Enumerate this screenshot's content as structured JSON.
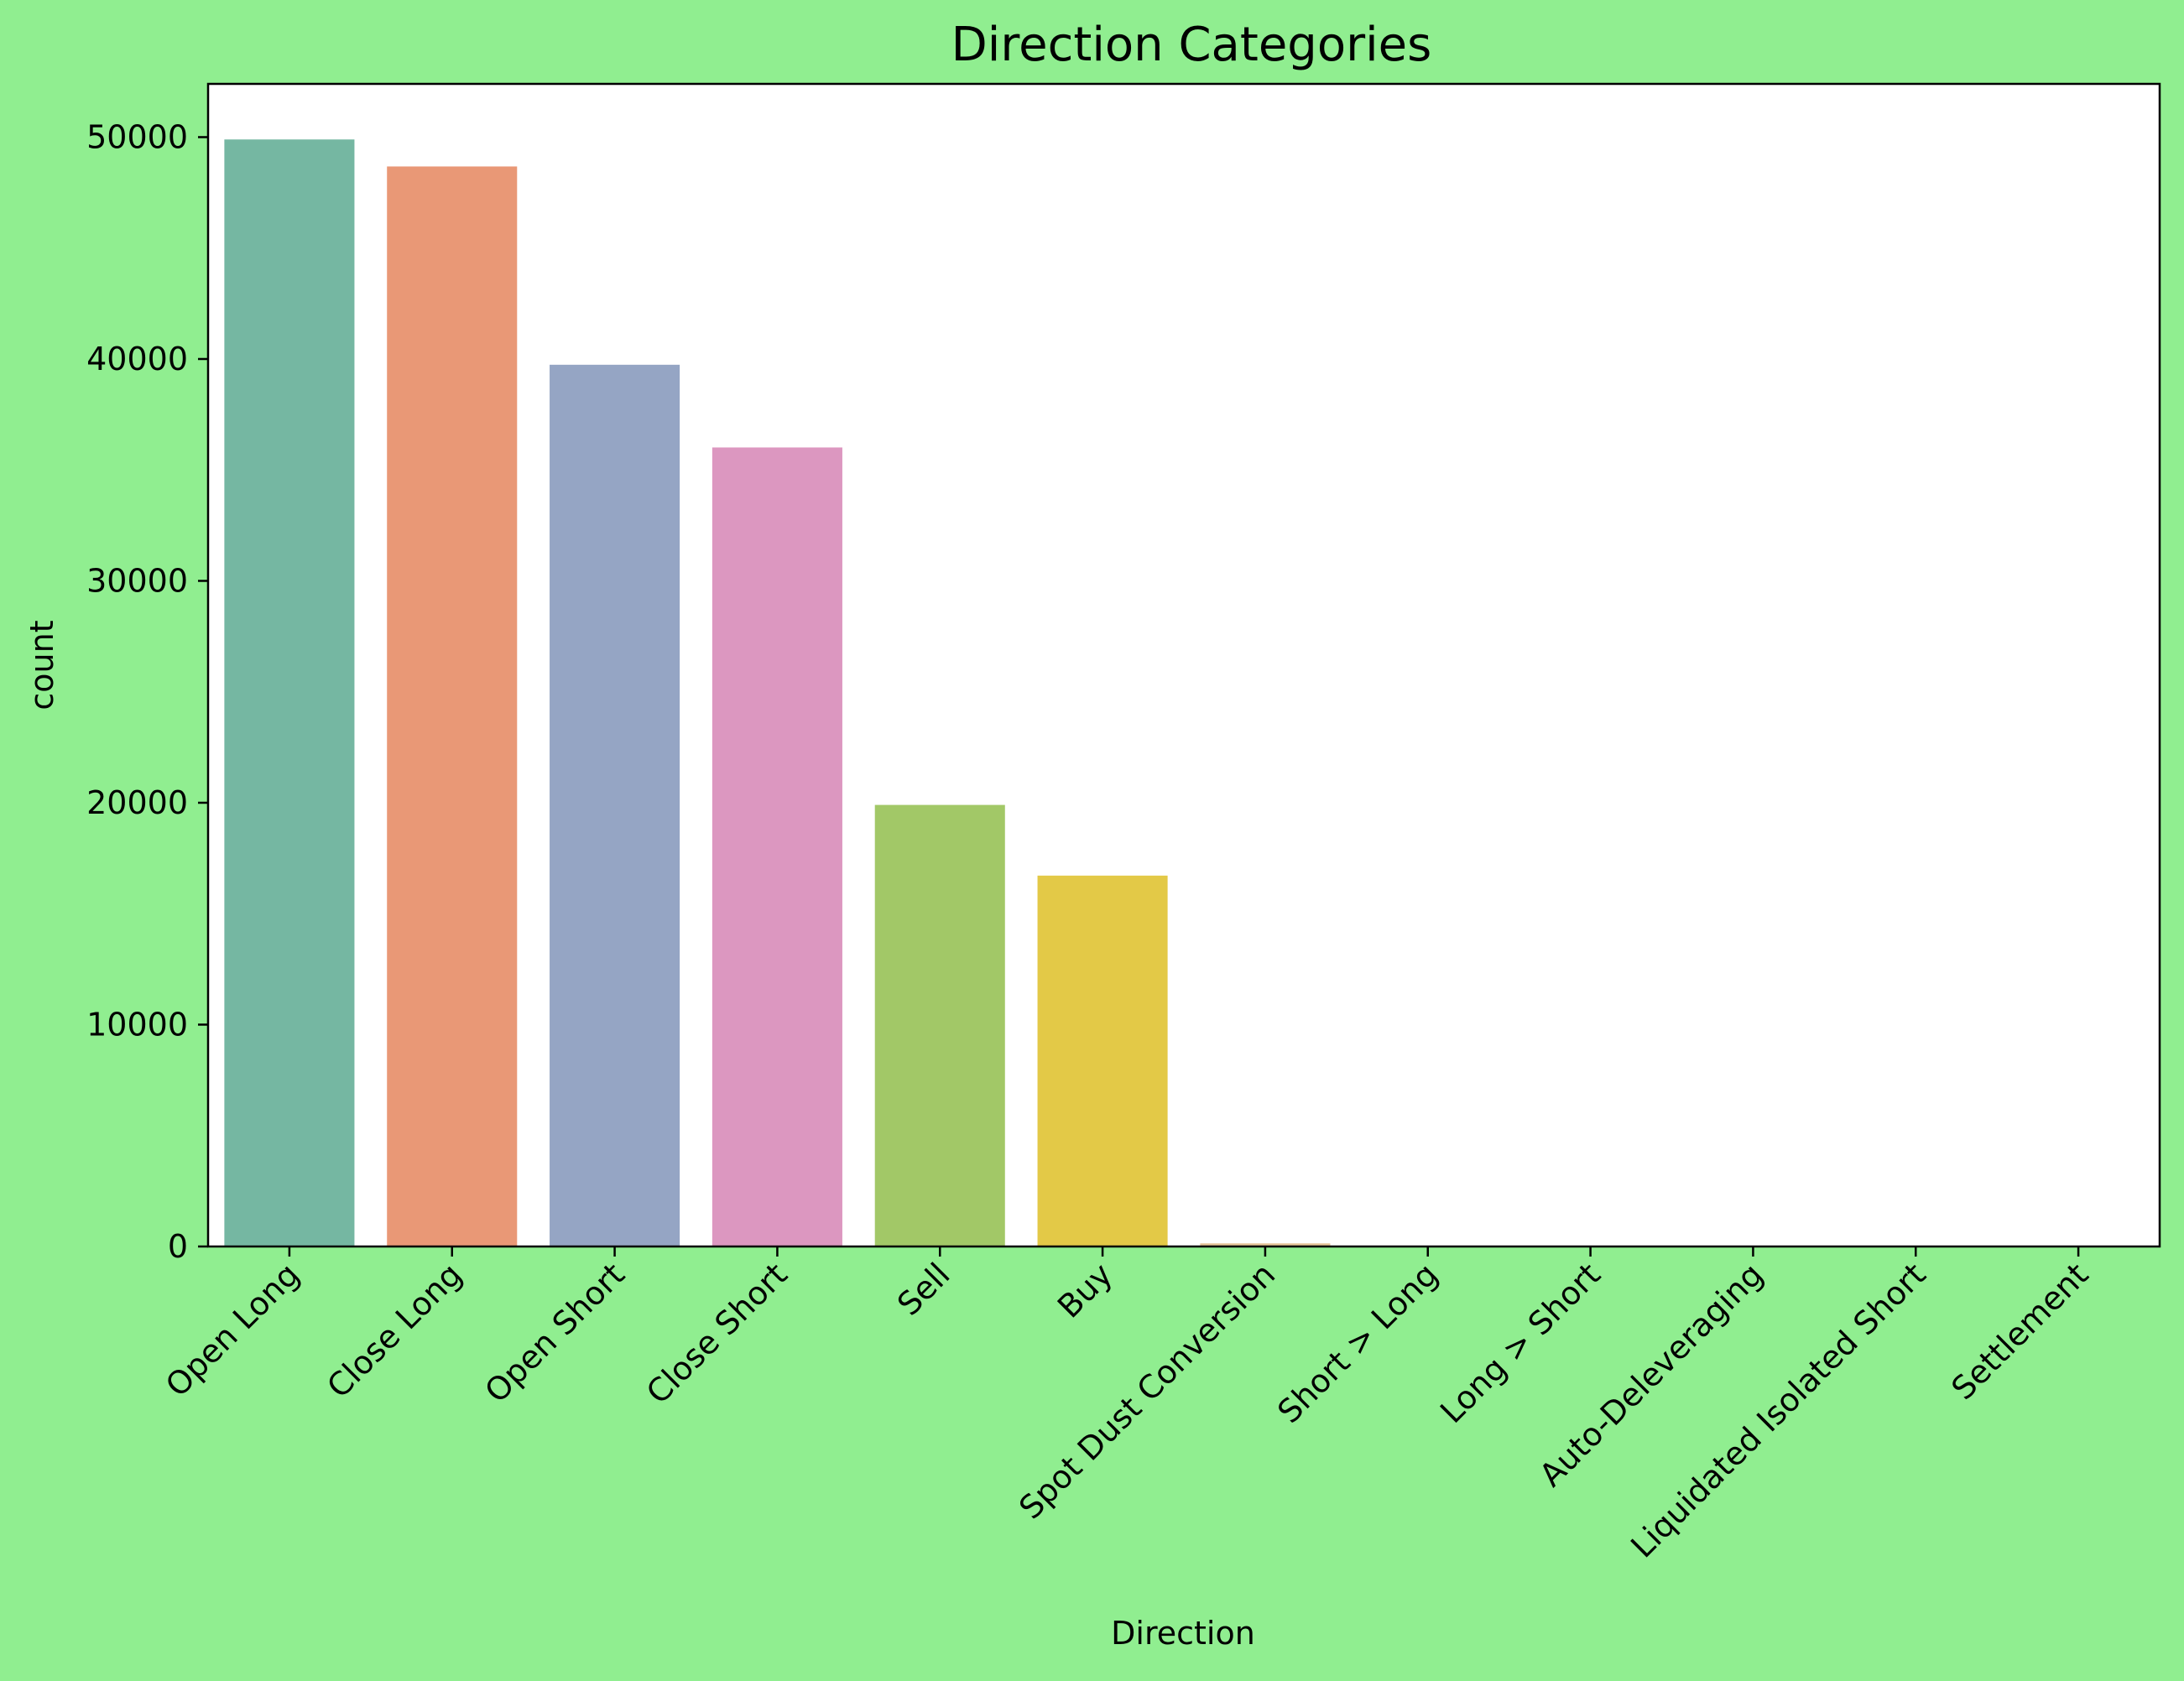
{
  "chart_data": {
    "type": "bar",
    "title": "Direction Categories",
    "xlabel": "Direction",
    "ylabel": "count",
    "categories": [
      "Open Long",
      "Close Long",
      "Open Short",
      "Close Short",
      "Sell",
      "Buy",
      "Spot Dust Conversion",
      "Short > Long",
      "Long > Short",
      "Auto-Deleveraging",
      "Liquidated Isolated Short",
      "Settlement"
    ],
    "values": [
      49895,
      48678,
      39741,
      36013,
      19902,
      16716,
      142,
      21,
      21,
      2,
      1,
      1
    ],
    "colors": [
      "#75B7A2",
      "#E99876",
      "#95A5C4",
      "#DC97C0",
      "#A2C867",
      "#E3C947",
      "#E6C498",
      "#B3B3B3",
      "#75B7A2",
      "#E99876",
      "#95A5C4",
      "#DC97C0"
    ],
    "yticks": [
      0,
      10000,
      20000,
      30000,
      40000,
      50000
    ],
    "ylim": [
      0,
      52400
    ],
    "grid": false,
    "figure_background": "#90EE90",
    "axes_background": "#FFFFFF"
  }
}
